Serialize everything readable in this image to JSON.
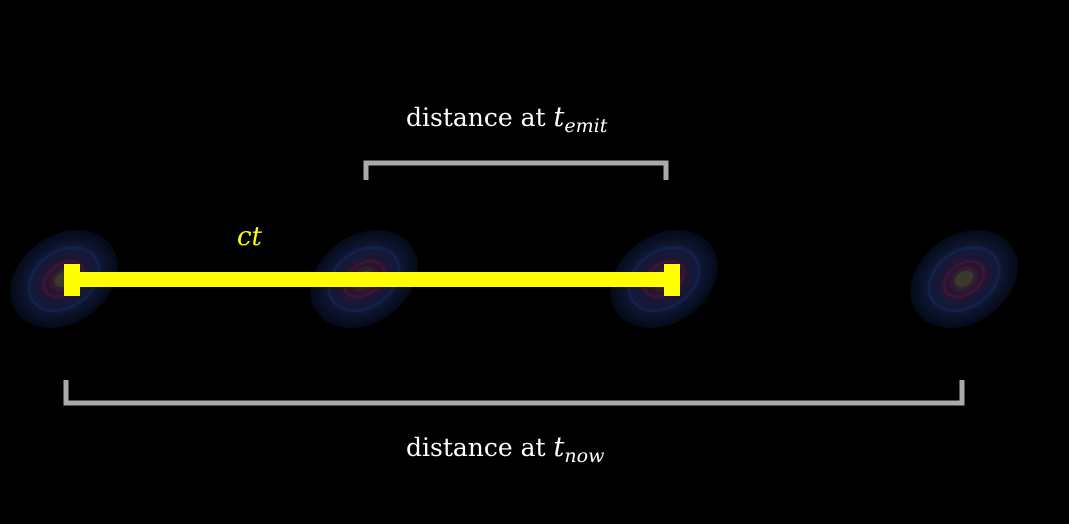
{
  "labels": {
    "top_prefix": "distance at ",
    "top_var": "t",
    "top_sub": "emit",
    "bottom_prefix": "distance at ",
    "bottom_var": "t",
    "bottom_sub": "now",
    "light_path": "ct"
  },
  "colors": {
    "background": "#000000",
    "light_path": "#ffff00",
    "bracket": "#aaaaaa",
    "text": "#ffffff"
  },
  "galaxies": [
    {
      "icon": "spiral-galaxy-icon"
    },
    {
      "icon": "spiral-galaxy-icon"
    },
    {
      "icon": "spiral-galaxy-icon"
    },
    {
      "icon": "spiral-galaxy-icon"
    }
  ]
}
